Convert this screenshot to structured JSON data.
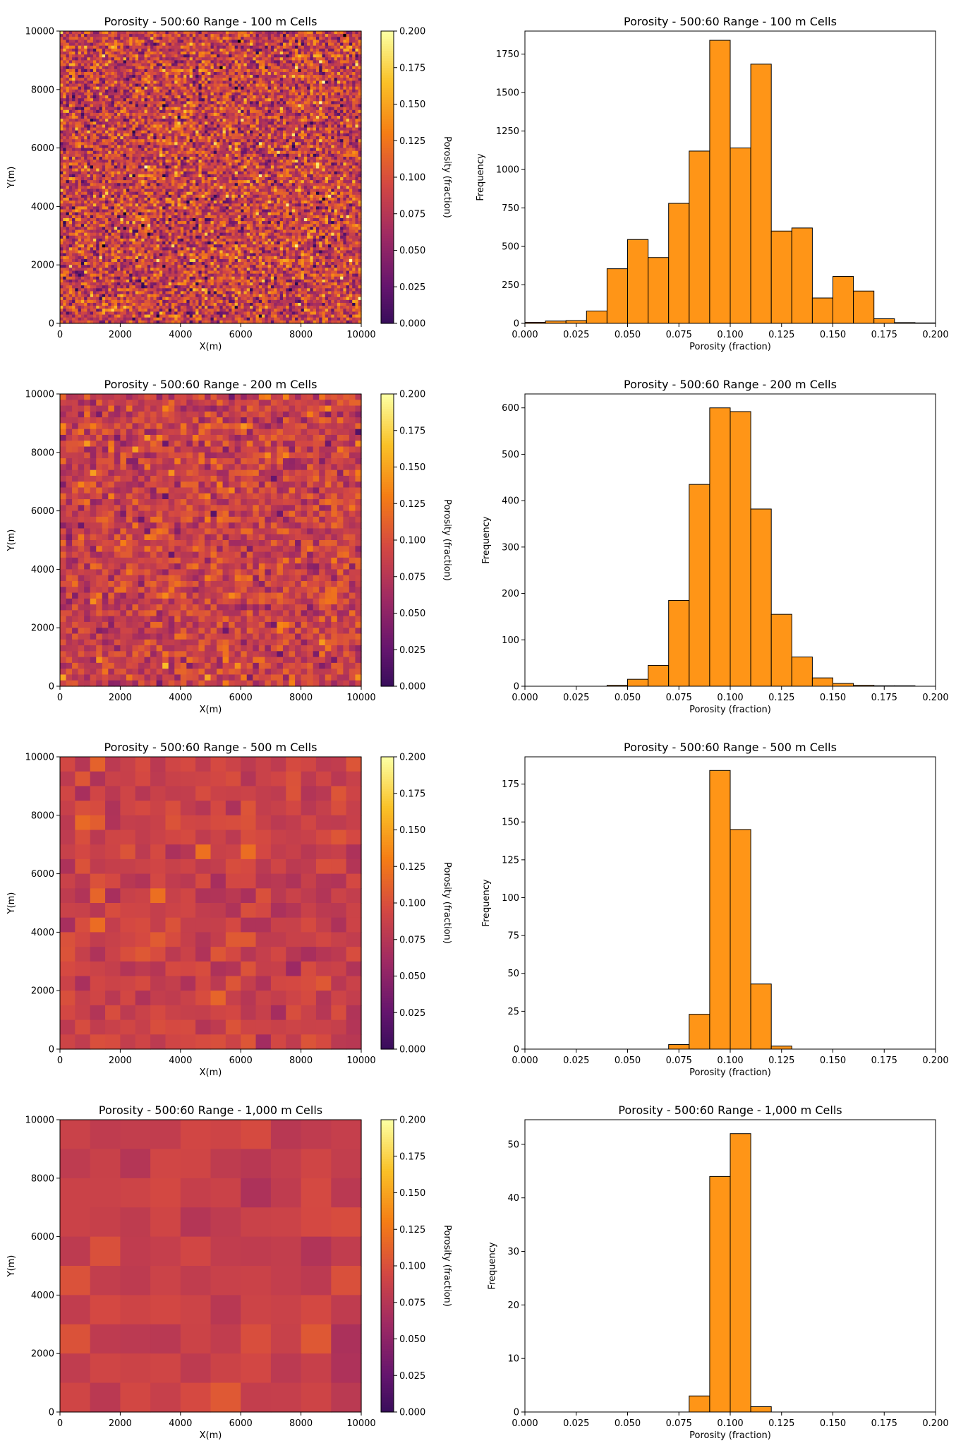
{
  "figure": {
    "colorbar_label": "Porosity (fraction)",
    "colormap": "inferno",
    "colorbar_ticks": [
      0.0,
      0.025,
      0.05,
      0.075,
      0.1,
      0.125,
      0.15,
      0.175,
      0.2
    ],
    "colorbar_tick_labels": [
      "0.000",
      "0.025",
      "0.050",
      "0.075",
      "0.100",
      "0.125",
      "0.150",
      "0.175",
      "0.200"
    ],
    "map_x_ticks": [
      0,
      2000,
      4000,
      6000,
      8000,
      10000
    ],
    "map_x_tick_labels": [
      "0",
      "2000",
      "4000",
      "6000",
      "8000",
      "10000"
    ],
    "map_y_ticks": [
      0,
      2000,
      4000,
      6000,
      8000,
      10000
    ],
    "map_y_tick_labels": [
      "0",
      "2000",
      "4000",
      "6000",
      "8000",
      "10000"
    ],
    "hist_x_ticks": [
      0.0,
      0.025,
      0.05,
      0.075,
      0.1,
      0.125,
      0.15,
      0.175,
      0.2
    ],
    "hist_x_tick_labels": [
      "0.000",
      "0.025",
      "0.050",
      "0.075",
      "0.100",
      "0.125",
      "0.150",
      "0.175",
      "0.200"
    ],
    "bar_color": "#ff9517",
    "bar_edge_color": "#000000"
  },
  "chart_data": [
    {
      "type": "heatmap",
      "title": "Porosity - 500:60 Range - 100 m Cells",
      "xlabel": "X(m)",
      "ylabel": "Y(m)",
      "xlim": [
        0,
        10000
      ],
      "ylim": [
        0,
        10000
      ],
      "cells_per_side": 100,
      "cell_size_m": 100,
      "value_range": [
        0.0,
        0.2
      ],
      "mean": 0.1,
      "std": 0.03,
      "colorbar_label": "Porosity (fraction)"
    },
    {
      "type": "bar",
      "title": "Porosity - 500:60 Range - 100 m Cells",
      "xlabel": "Porosity (fraction)",
      "ylabel": "Frequency",
      "xlim": [
        0.0,
        0.2
      ],
      "ylim": [
        0,
        1900
      ],
      "yticks": [
        0,
        250,
        500,
        750,
        1000,
        1250,
        1500,
        1750
      ],
      "bin_edges": [
        0.0,
        0.01,
        0.02,
        0.03,
        0.04,
        0.05,
        0.06,
        0.07,
        0.08,
        0.09,
        0.1,
        0.11,
        0.12,
        0.13,
        0.14,
        0.15,
        0.16,
        0.17,
        0.18,
        0.19,
        0.2
      ],
      "values": [
        7,
        15,
        18,
        80,
        355,
        545,
        428,
        780,
        1120,
        1840,
        1140,
        1685,
        600,
        620,
        165,
        305,
        210,
        30,
        5,
        3
      ]
    },
    {
      "type": "heatmap",
      "title": "Porosity - 500:60 Range - 200 m Cells",
      "xlabel": "X(m)",
      "ylabel": "Y(m)",
      "xlim": [
        0,
        10000
      ],
      "ylim": [
        0,
        10000
      ],
      "cells_per_side": 50,
      "cell_size_m": 200,
      "value_range": [
        0.0,
        0.2
      ],
      "mean": 0.1,
      "std": 0.018,
      "colorbar_label": "Porosity (fraction)"
    },
    {
      "type": "bar",
      "title": "Porosity - 500:60 Range - 200 m Cells",
      "xlabel": "Porosity (fraction)",
      "ylabel": "Frequency",
      "xlim": [
        0.0,
        0.2
      ],
      "ylim": [
        0,
        630
      ],
      "yticks": [
        0,
        100,
        200,
        300,
        400,
        500,
        600
      ],
      "bin_edges": [
        0.0,
        0.01,
        0.02,
        0.03,
        0.04,
        0.05,
        0.06,
        0.07,
        0.08,
        0.09,
        0.1,
        0.11,
        0.12,
        0.13,
        0.14,
        0.15,
        0.16,
        0.17,
        0.18,
        0.19,
        0.2
      ],
      "values": [
        0,
        0,
        0,
        0,
        2,
        15,
        45,
        185,
        435,
        600,
        592,
        382,
        155,
        63,
        18,
        6,
        2,
        1,
        1,
        0
      ]
    },
    {
      "type": "heatmap",
      "title": "Porosity - 500:60 Range - 500 m Cells",
      "xlabel": "X(m)",
      "ylabel": "Y(m)",
      "xlim": [
        0,
        10000
      ],
      "ylim": [
        0,
        10000
      ],
      "cells_per_side": 20,
      "cell_size_m": 500,
      "value_range": [
        0.0,
        0.2
      ],
      "mean": 0.1,
      "std": 0.009,
      "colorbar_label": "Porosity (fraction)"
    },
    {
      "type": "bar",
      "title": "Porosity - 500:60 Range - 500 m Cells",
      "xlabel": "Porosity (fraction)",
      "ylabel": "Frequency",
      "xlim": [
        0.0,
        0.2
      ],
      "ylim": [
        0,
        193
      ],
      "yticks": [
        0,
        25,
        50,
        75,
        100,
        125,
        150,
        175
      ],
      "bin_edges": [
        0.0,
        0.01,
        0.02,
        0.03,
        0.04,
        0.05,
        0.06,
        0.07,
        0.08,
        0.09,
        0.1,
        0.11,
        0.12,
        0.13,
        0.14,
        0.15,
        0.16,
        0.17,
        0.18,
        0.19,
        0.2
      ],
      "values": [
        0,
        0,
        0,
        0,
        0,
        0,
        0,
        3,
        23,
        184,
        145,
        43,
        2,
        0,
        0,
        0,
        0,
        0,
        0,
        0
      ]
    },
    {
      "type": "heatmap",
      "title": "Porosity - 500:60 Range - 1,000 m Cells",
      "xlabel": "X(m)",
      "ylabel": "Y(m)",
      "xlim": [
        0,
        10000
      ],
      "ylim": [
        0,
        10000
      ],
      "cells_per_side": 10,
      "cell_size_m": 1000,
      "value_range": [
        0.0,
        0.2
      ],
      "mean": 0.1,
      "std": 0.006,
      "colorbar_label": "Porosity (fraction)"
    },
    {
      "type": "bar",
      "title": "Porosity - 500:60 Range - 1,000 m Cells",
      "xlabel": "Porosity (fraction)",
      "ylabel": "Frequency",
      "xlim": [
        0.0,
        0.2
      ],
      "ylim": [
        0,
        54.6
      ],
      "yticks": [
        0,
        10,
        20,
        30,
        40,
        50
      ],
      "bin_edges": [
        0.0,
        0.01,
        0.02,
        0.03,
        0.04,
        0.05,
        0.06,
        0.07,
        0.08,
        0.09,
        0.1,
        0.11,
        0.12,
        0.13,
        0.14,
        0.15,
        0.16,
        0.17,
        0.18,
        0.19,
        0.2
      ],
      "values": [
        0,
        0,
        0,
        0,
        0,
        0,
        0,
        0,
        3,
        44,
        52,
        1,
        0,
        0,
        0,
        0,
        0,
        0,
        0,
        0
      ]
    }
  ]
}
